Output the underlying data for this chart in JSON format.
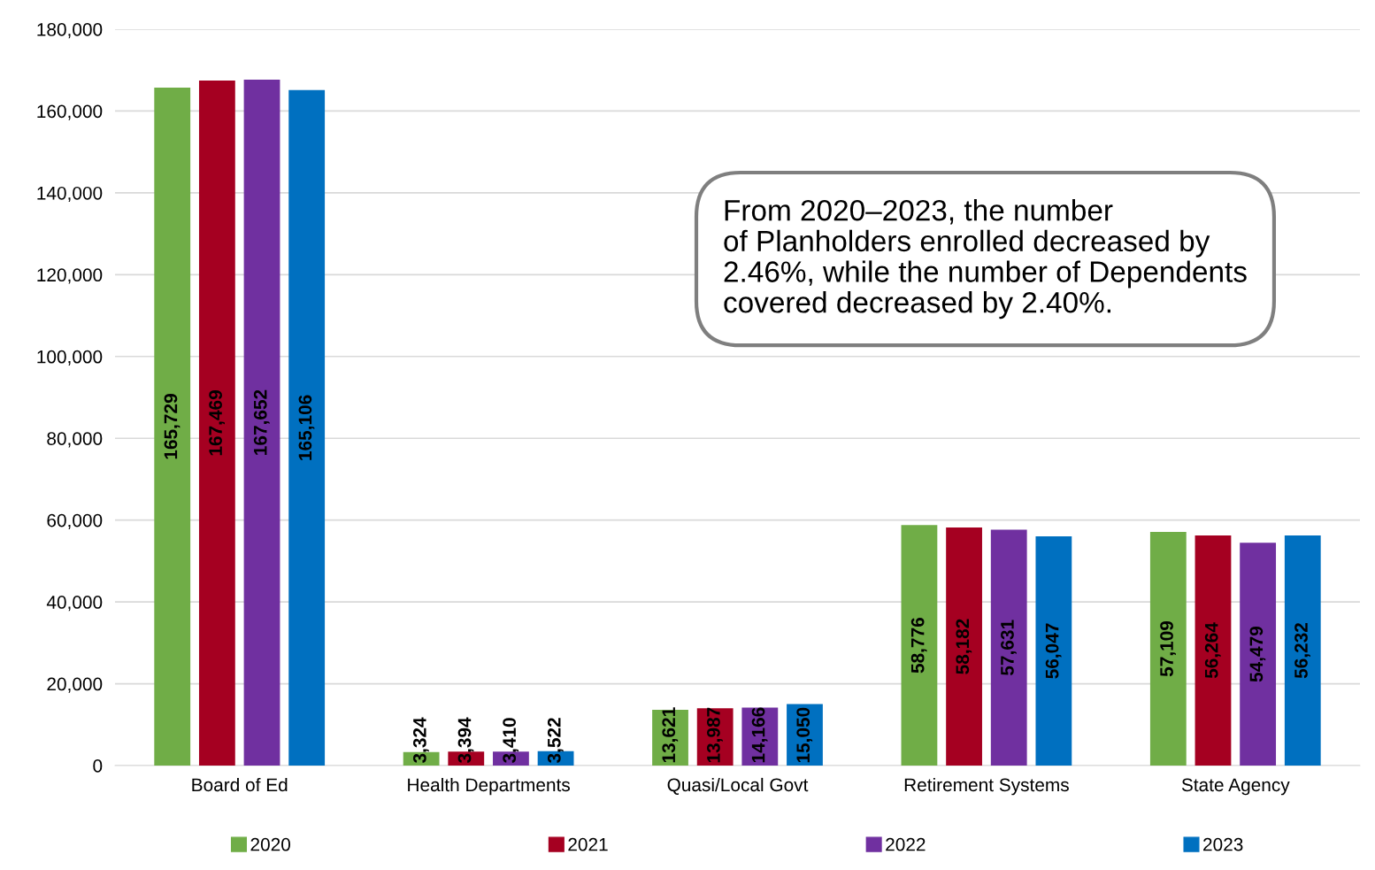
{
  "chart_data": {
    "type": "bar",
    "categories": [
      "Board of Ed",
      "Health Departments",
      "Quasi/Local Govt",
      "Retirement Systems",
      "State Agency"
    ],
    "series": [
      {
        "name": "2020",
        "color": "#70ad47",
        "values": [
          165729,
          3324,
          13621,
          58776,
          57109
        ],
        "value_labels": [
          "165,729",
          "3,324",
          "13,621",
          "58,776",
          "57,109"
        ]
      },
      {
        "name": "2021",
        "color": "#a50021",
        "values": [
          167469,
          3394,
          13987,
          58182,
          56264
        ],
        "value_labels": [
          "167,469",
          "3,394",
          "13,987",
          "58,182",
          "56,264"
        ]
      },
      {
        "name": "2022",
        "color": "#7030a0",
        "values": [
          167652,
          3410,
          14166,
          57631,
          54479
        ],
        "value_labels": [
          "167,652",
          "3,410",
          "14,166",
          "57,631",
          "54,479"
        ]
      },
      {
        "name": "2023",
        "color": "#0070c0",
        "values": [
          165106,
          3522,
          15050,
          56047,
          56232
        ],
        "value_labels": [
          "165,106",
          "3,522",
          "15,050",
          "56,047",
          "56,232"
        ]
      }
    ],
    "ylim": [
      0,
      180000
    ],
    "yticks": [
      {
        "value": 0,
        "label": "0"
      },
      {
        "value": 20000,
        "label": "20,000"
      },
      {
        "value": 40000,
        "label": "40,000"
      },
      {
        "value": 60000,
        "label": "60,000"
      },
      {
        "value": 80000,
        "label": "80,000"
      },
      {
        "value": 100000,
        "label": "100,000"
      },
      {
        "value": 120000,
        "label": "120,000"
      },
      {
        "value": 140000,
        "label": "140,000"
      },
      {
        "value": 160000,
        "label": "160,000"
      },
      {
        "value": 180000,
        "label": "180,000"
      }
    ],
    "grid": "y",
    "legend": "bottom",
    "annotations": [
      "From 2020–2023, the number\nof Planholders enrolled decreased by\n2.46%, while the number of Dependents\ncovered decreased by 2.40%."
    ]
  }
}
